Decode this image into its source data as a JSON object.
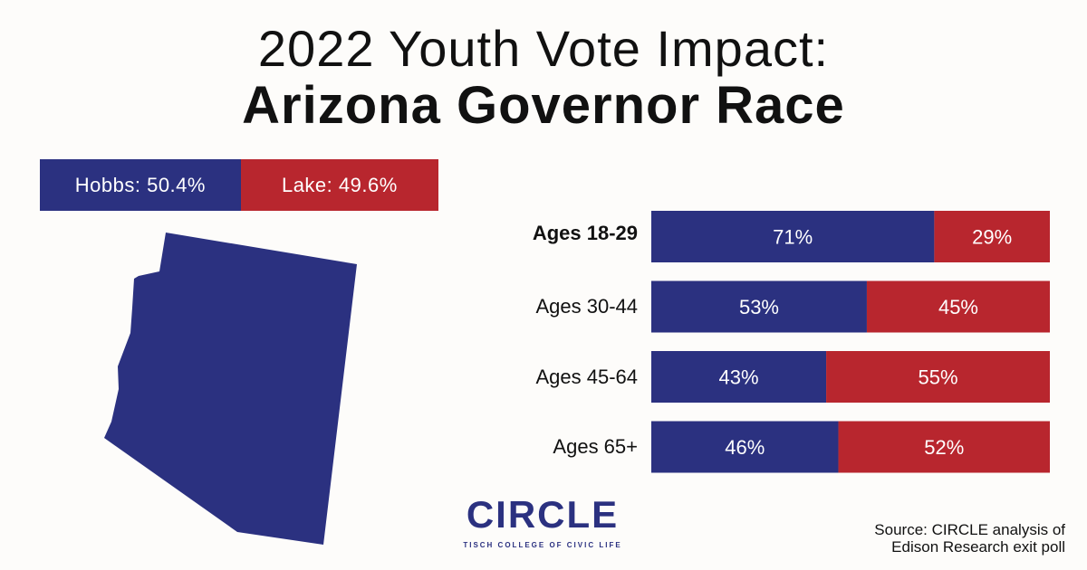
{
  "title": {
    "line1": "2022 Youth Vote Impact:",
    "line2": "Arizona Governor Race"
  },
  "totals": {
    "hobbs_label": "Hobbs: 50.4%",
    "hobbs_value": 50.4,
    "lake_label": "Lake: 49.6%",
    "lake_value": 49.6
  },
  "colors": {
    "hobbs": "#2b3180",
    "lake": "#b8262e"
  },
  "map_icon": "arizona-state-shape",
  "chart_data": {
    "type": "bar",
    "orientation": "horizontal",
    "stacked": true,
    "categories": [
      "Ages 18-29",
      "Ages 30-44",
      "Ages 45-64",
      "Ages 65+"
    ],
    "highlighted_category": "Ages 18-29",
    "series": [
      {
        "values": [
          71,
          53,
          43,
          46
        ],
        "labels": [
          "71%",
          "53%",
          "43%",
          "46%"
        ]
      },
      {
        "values": [
          29,
          45,
          55,
          52
        ],
        "labels": [
          "29%",
          "45%",
          "55%",
          "52%"
        ]
      }
    ],
    "xlim": [
      0,
      100
    ]
  },
  "logo": {
    "word": "CIRCLE",
    "subtitle": "TISCH COLLEGE OF CIVIC LIFE"
  },
  "source": {
    "line1": "Source: CIRCLE analysis of",
    "line2": "Edison Research exit poll"
  }
}
